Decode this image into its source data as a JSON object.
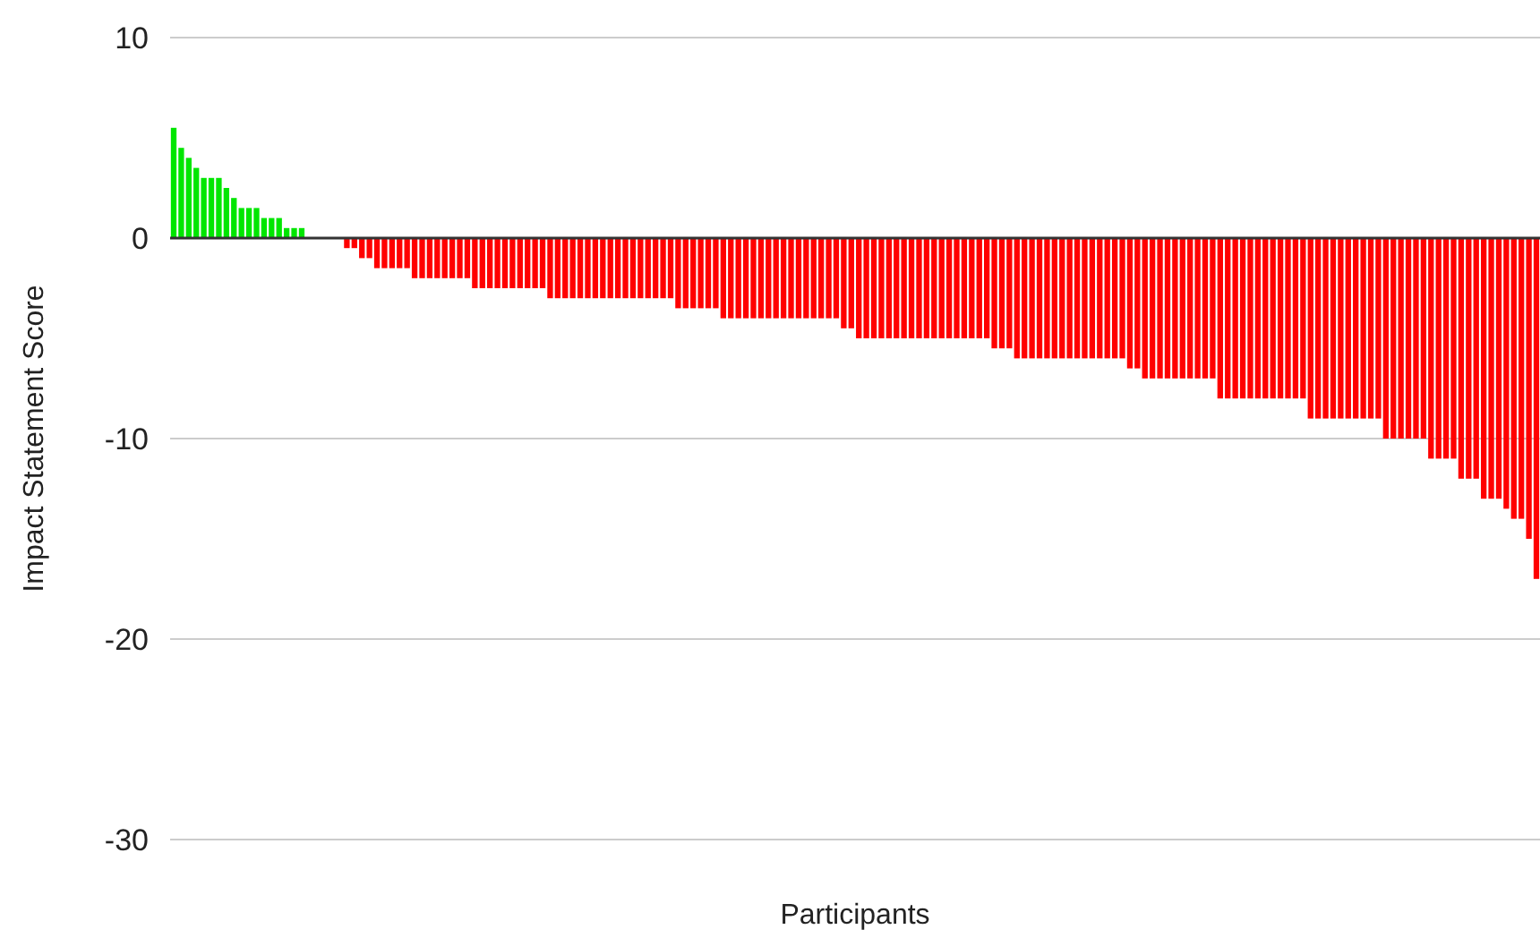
{
  "chart_data": {
    "type": "bar",
    "xlabel": "Participants",
    "ylabel": "Impact Statement Score",
    "categories": [
      null,
      null,
      null,
      null,
      null,
      null,
      null,
      null,
      null,
      null,
      null,
      null,
      null,
      null,
      null,
      null,
      null,
      null,
      null,
      null,
      null,
      null,
      null,
      null,
      null,
      null,
      null,
      null,
      null,
      null,
      null,
      null,
      null,
      null,
      null,
      null,
      null,
      null,
      null,
      null,
      null,
      null,
      null,
      null,
      null,
      null,
      null,
      null,
      null,
      null,
      null,
      null,
      null,
      null,
      null,
      null,
      null,
      null,
      null,
      null,
      null,
      null,
      null,
      null,
      null,
      null,
      null,
      null,
      null,
      null,
      null,
      null,
      null,
      null,
      null,
      null,
      null,
      null,
      null,
      null,
      null,
      null,
      null,
      null,
      null,
      null,
      null,
      null,
      null,
      null,
      null,
      null,
      null,
      null,
      null,
      null,
      null,
      null,
      null,
      null,
      null,
      null,
      null,
      null,
      null,
      null,
      null,
      null,
      null,
      null,
      null,
      null,
      null,
      null,
      null,
      null,
      null,
      null,
      null,
      null,
      null,
      null,
      null,
      null,
      null,
      null,
      null,
      null,
      null,
      null,
      null,
      null,
      null,
      null,
      null,
      null,
      null,
      null,
      null,
      null,
      null,
      null,
      null,
      null,
      null,
      null,
      null,
      null,
      null,
      null,
      null,
      null,
      null,
      null,
      null,
      null,
      null,
      null,
      null,
      null,
      null,
      null,
      null,
      null,
      null,
      null,
      null,
      null,
      null,
      null,
      null,
      null,
      null,
      null,
      null,
      null,
      null,
      null,
      null,
      null,
      null,
      null
    ],
    "values": [
      5.5,
      4.5,
      4,
      3.5,
      3,
      3,
      3,
      2.5,
      2,
      1.5,
      1.5,
      1.5,
      1,
      1,
      1,
      0.5,
      0.5,
      0.5,
      0,
      0,
      0,
      0,
      0,
      -0.5,
      -0.5,
      -1,
      -1,
      -1.5,
      -1.5,
      -1.5,
      -1.5,
      -1.5,
      -2,
      -2,
      -2,
      -2,
      -2,
      -2,
      -2,
      -2,
      -2.5,
      -2.5,
      -2.5,
      -2.5,
      -2.5,
      -2.5,
      -2.5,
      -2.5,
      -2.5,
      -2.5,
      -3,
      -3,
      -3,
      -3,
      -3,
      -3,
      -3,
      -3,
      -3,
      -3,
      -3,
      -3,
      -3,
      -3,
      -3,
      -3,
      -3,
      -3.5,
      -3.5,
      -3.5,
      -3.5,
      -3.5,
      -3.5,
      -4,
      -4,
      -4,
      -4,
      -4,
      -4,
      -4,
      -4,
      -4,
      -4,
      -4,
      -4,
      -4,
      -4,
      -4,
      -4,
      -4.5,
      -4.5,
      -5,
      -5,
      -5,
      -5,
      -5,
      -5,
      -5,
      -5,
      -5,
      -5,
      -5,
      -5,
      -5,
      -5,
      -5,
      -5,
      -5,
      -5,
      -5.5,
      -5.5,
      -5.5,
      -6,
      -6,
      -6,
      -6,
      -6,
      -6,
      -6,
      -6,
      -6,
      -6,
      -6,
      -6,
      -6,
      -6,
      -6,
      -6.5,
      -6.5,
      -7,
      -7,
      -7,
      -7,
      -7,
      -7,
      -7,
      -7,
      -7,
      -7,
      -8,
      -8,
      -8,
      -8,
      -8,
      -8,
      -8,
      -8,
      -8,
      -8,
      -8,
      -8,
      -9,
      -9,
      -9,
      -9,
      -9,
      -9,
      -9,
      -9,
      -9,
      -9,
      -10,
      -10,
      -10,
      -10,
      -10,
      -10,
      -11,
      -11,
      -11,
      -11,
      -12,
      -12,
      -12,
      -13,
      -13,
      -13,
      -13.5,
      -14,
      -14,
      -15,
      -17
    ],
    "colors": [
      "#00e600",
      "#00e600",
      "#00e600",
      "#00e600",
      "#00e600",
      "#00e600",
      "#00e600",
      "#00e600",
      "#00e600",
      "#00e600",
      "#00e600",
      "#00e600",
      "#00e600",
      "#00e600",
      "#00e600",
      "#00e600",
      "#00e600",
      "#00e600",
      "#ff0000",
      "#ff0000",
      "#ff0000",
      "#ff0000",
      "#ff0000",
      "#ff0000",
      "#ff0000",
      "#ff0000",
      "#ff0000",
      "#ff0000",
      "#ff0000",
      "#ff0000",
      "#ff0000",
      "#ff0000",
      "#ff0000",
      "#ff0000",
      "#ff0000",
      "#ff0000",
      "#ff0000",
      "#ff0000",
      "#ff0000",
      "#ff0000",
      "#ff0000",
      "#ff0000",
      "#ff0000",
      "#ff0000",
      "#ff0000",
      "#ff0000",
      "#ff0000",
      "#ff0000",
      "#ff0000",
      "#ff0000",
      "#ff0000",
      "#ff0000",
      "#ff0000",
      "#ff0000",
      "#ff0000",
      "#ff0000",
      "#ff0000",
      "#ff0000",
      "#ff0000",
      "#ff0000",
      "#ff0000",
      "#ff0000",
      "#ff0000",
      "#ff0000",
      "#ff0000",
      "#ff0000",
      "#ff0000",
      "#ff0000",
      "#ff0000",
      "#ff0000",
      "#ff0000",
      "#ff0000",
      "#ff0000",
      "#ff0000",
      "#ff0000",
      "#ff0000",
      "#ff0000",
      "#ff0000",
      "#ff0000",
      "#ff0000",
      "#ff0000",
      "#ff0000",
      "#ff0000",
      "#ff0000",
      "#ff0000",
      "#ff0000",
      "#ff0000",
      "#ff0000",
      "#ff0000",
      "#ff0000",
      "#ff0000",
      "#ff0000",
      "#ff0000",
      "#ff0000",
      "#ff0000",
      "#ff0000",
      "#ff0000",
      "#ff0000",
      "#ff0000",
      "#ff0000",
      "#ff0000",
      "#ff0000",
      "#ff0000",
      "#ff0000",
      "#ff0000",
      "#ff0000",
      "#ff0000",
      "#ff0000",
      "#ff0000",
      "#ff0000",
      "#ff0000",
      "#ff0000",
      "#ff0000",
      "#ff0000",
      "#ff0000",
      "#ff0000",
      "#ff0000",
      "#ff0000",
      "#ff0000",
      "#ff0000",
      "#ff0000",
      "#ff0000",
      "#ff0000",
      "#ff0000",
      "#ff0000",
      "#ff0000",
      "#ff0000",
      "#ff0000",
      "#ff0000",
      "#ff0000",
      "#ff0000",
      "#ff0000",
      "#ff0000",
      "#ff0000",
      "#ff0000",
      "#ff0000",
      "#ff0000",
      "#ff0000",
      "#ff0000",
      "#ff0000",
      "#ff0000",
      "#ff0000",
      "#ff0000",
      "#ff0000",
      "#ff0000",
      "#ff0000",
      "#ff0000",
      "#ff0000",
      "#ff0000",
      "#ff0000",
      "#ff0000",
      "#ff0000",
      "#ff0000",
      "#ff0000",
      "#ff0000",
      "#ff0000",
      "#ff0000",
      "#ff0000",
      "#ff0000",
      "#ff0000",
      "#ff0000",
      "#ff0000",
      "#ff0000",
      "#ff0000",
      "#ff0000",
      "#ff0000",
      "#ff0000",
      "#ff0000",
      "#ff0000",
      "#ff0000",
      "#ff0000",
      "#ff0000",
      "#ff0000",
      "#ff0000",
      "#ff0000",
      "#ff0000",
      "#ff0000",
      "#ff0000",
      "#ff0000",
      "#ff0000",
      "#ff0000",
      "#ff0000"
    ],
    "ylim": [
      -30,
      10
    ],
    "yticks": [
      -30,
      -20,
      -10,
      0,
      10
    ],
    "grid": "y",
    "tick_labels": "y"
  }
}
